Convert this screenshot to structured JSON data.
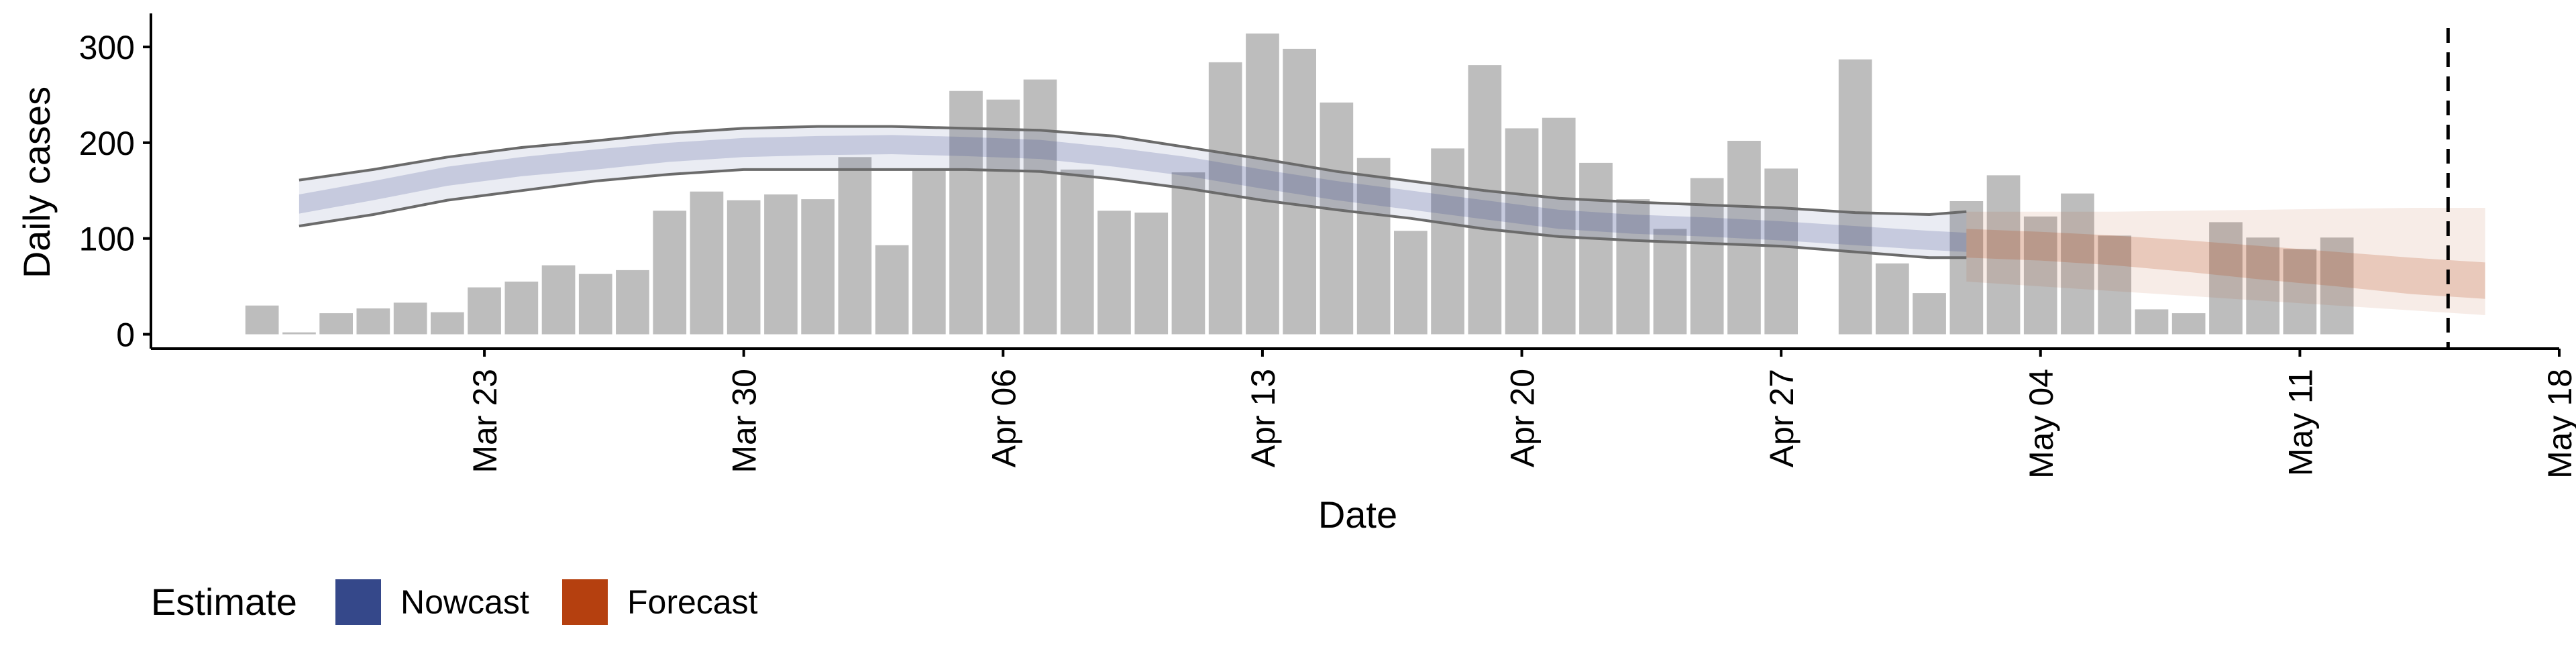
{
  "chart_data": {
    "type": "bar",
    "xlabel": "Date",
    "ylabel": "Daily cases",
    "ylim": [
      -15,
      335
    ],
    "yticks": [
      0,
      100,
      200,
      300
    ],
    "xlim": [
      "2020-03-14",
      "2020-05-18"
    ],
    "xticks": [
      {
        "date": "2020-03-23",
        "label": "Mar 23"
      },
      {
        "date": "2020-03-30",
        "label": "Mar 30"
      },
      {
        "date": "2020-04-06",
        "label": "Apr 06"
      },
      {
        "date": "2020-04-13",
        "label": "Apr 13"
      },
      {
        "date": "2020-04-20",
        "label": "Apr 20"
      },
      {
        "date": "2020-04-27",
        "label": "Apr 27"
      },
      {
        "date": "2020-05-04",
        "label": "May 04"
      },
      {
        "date": "2020-05-11",
        "label": "May 11"
      },
      {
        "date": "2020-05-18",
        "label": "May 18"
      }
    ],
    "grid": false,
    "legend": {
      "title": "Estimate",
      "position": "bottom-left",
      "items": [
        {
          "label": "Nowcast",
          "color": "#35488A"
        },
        {
          "label": "Forecast",
          "color": "#B5400F"
        }
      ]
    },
    "bar_color": "#BDBDBD",
    "reported_cases": {
      "dates": [
        "2020-03-17",
        "2020-03-18",
        "2020-03-19",
        "2020-03-20",
        "2020-03-21",
        "2020-03-22",
        "2020-03-23",
        "2020-03-24",
        "2020-03-25",
        "2020-03-26",
        "2020-03-27",
        "2020-03-28",
        "2020-03-29",
        "2020-03-30",
        "2020-03-31",
        "2020-04-01",
        "2020-04-02",
        "2020-04-03",
        "2020-04-04",
        "2020-04-05",
        "2020-04-06",
        "2020-04-07",
        "2020-04-08",
        "2020-04-09",
        "2020-04-10",
        "2020-04-11",
        "2020-04-12",
        "2020-04-13",
        "2020-04-14",
        "2020-04-15",
        "2020-04-16",
        "2020-04-17",
        "2020-04-18",
        "2020-04-19",
        "2020-04-20",
        "2020-04-21",
        "2020-04-22",
        "2020-04-23",
        "2020-04-24",
        "2020-04-25",
        "2020-04-26",
        "2020-04-27",
        "2020-04-28",
        "2020-04-29",
        "2020-04-30",
        "2020-05-01",
        "2020-05-02",
        "2020-05-03",
        "2020-05-04",
        "2020-05-05",
        "2020-05-06",
        "2020-05-07",
        "2020-05-08",
        "2020-05-09",
        "2020-05-10",
        "2020-05-11",
        "2020-05-12",
        "2020-05-13",
        "2020-05-14",
        "2020-05-15"
      ],
      "values": [
        30,
        2,
        22,
        27,
        33,
        23,
        49,
        55,
        72,
        63,
        67,
        129,
        149,
        140,
        146,
        141,
        185,
        93,
        173,
        254,
        245,
        266,
        172,
        129,
        127,
        169,
        284,
        314,
        298,
        242,
        184,
        108,
        194,
        281,
        215,
        226,
        179,
        141,
        110,
        163,
        202,
        173,
        null,
        287,
        74,
        43,
        139,
        166,
        123,
        147,
        103,
        26,
        22,
        117,
        101,
        89,
        101,
        null,
        null,
        null
      ]
    },
    "series": [
      {
        "name": "Nowcast",
        "color": "#35488A",
        "dates": [
          "2020-03-18",
          "2020-03-20",
          "2020-03-22",
          "2020-03-24",
          "2020-03-26",
          "2020-03-28",
          "2020-03-30",
          "2020-04-01",
          "2020-04-03",
          "2020-04-05",
          "2020-04-07",
          "2020-04-09",
          "2020-04-11",
          "2020-04-13",
          "2020-04-15",
          "2020-04-17",
          "2020-04-19",
          "2020-04-21",
          "2020-04-23",
          "2020-04-25",
          "2020-04-27",
          "2020-04-29",
          "2020-05-01",
          "2020-05-02"
        ],
        "median": [
          135,
          150,
          165,
          175,
          182,
          190,
          195,
          197,
          198,
          196,
          193,
          185,
          175,
          162,
          150,
          140,
          130,
          120,
          115,
          112,
          108,
          103,
          98,
          96
        ],
        "lower_50": [
          126,
          140,
          155,
          165,
          172,
          180,
          185,
          187,
          188,
          186,
          183,
          175,
          165,
          152,
          140,
          130,
          120,
          110,
          105,
          102,
          98,
          93,
          88,
          86
        ],
        "upper_50": [
          146,
          160,
          175,
          185,
          193,
          200,
          205,
          207,
          208,
          206,
          203,
          195,
          185,
          172,
          160,
          150,
          140,
          130,
          125,
          122,
          118,
          113,
          108,
          106
        ],
        "lower_90": [
          113,
          125,
          140,
          150,
          160,
          167,
          172,
          172,
          172,
          172,
          170,
          162,
          152,
          140,
          130,
          121,
          110,
          102,
          98,
          95,
          92,
          86,
          80,
          80
        ],
        "upper_90": [
          161,
          172,
          185,
          195,
          202,
          210,
          215,
          217,
          217,
          215,
          213,
          207,
          195,
          183,
          170,
          160,
          150,
          142,
          138,
          135,
          132,
          127,
          125,
          128
        ]
      },
      {
        "name": "Forecast",
        "color": "#B5400F",
        "dates": [
          "2020-05-02",
          "2020-05-04",
          "2020-05-06",
          "2020-05-08",
          "2020-05-10",
          "2020-05-12",
          "2020-05-14",
          "2020-05-16"
        ],
        "median": [
          95,
          92,
          88,
          82,
          75,
          68,
          60,
          55
        ],
        "lower_50": [
          80,
          77,
          72,
          65,
          57,
          50,
          42,
          37
        ],
        "upper_50": [
          110,
          107,
          103,
          98,
          92,
          86,
          80,
          75
        ],
        "lower_90": [
          55,
          50,
          45,
          40,
          35,
          30,
          25,
          20
        ],
        "upper_90": [
          128,
          128,
          128,
          129,
          130,
          131,
          132,
          132
        ]
      }
    ],
    "annotations": [
      {
        "type": "vline",
        "date": "2020-05-15",
        "style": "dashed"
      }
    ]
  }
}
